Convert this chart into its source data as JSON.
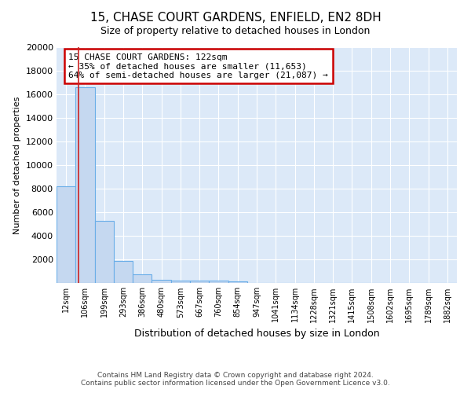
{
  "title": "15, CHASE COURT GARDENS, ENFIELD, EN2 8DH",
  "subtitle": "Size of property relative to detached houses in London",
  "xlabel": "Distribution of detached houses by size in London",
  "ylabel": "Number of detached properties",
  "bin_labels": [
    "12sqm",
    "106sqm",
    "199sqm",
    "293sqm",
    "386sqm",
    "480sqm",
    "573sqm",
    "667sqm",
    "760sqm",
    "854sqm",
    "947sqm",
    "1041sqm",
    "1134sqm",
    "1228sqm",
    "1321sqm",
    "1415sqm",
    "1508sqm",
    "1602sqm",
    "1695sqm",
    "1789sqm",
    "1882sqm"
  ],
  "bar_heights": [
    8200,
    16600,
    5300,
    1850,
    750,
    300,
    230,
    200,
    190,
    160,
    0,
    0,
    0,
    0,
    0,
    0,
    0,
    0,
    0,
    0,
    0
  ],
  "bar_color": "#c5d8f0",
  "bar_edge_color": "#6aaee8",
  "annotation_line1": "15 CHASE COURT GARDENS: 122sqm",
  "annotation_line2": "← 35% of detached houses are smaller (11,653)",
  "annotation_line3": "64% of semi-detached houses are larger (21,087) →",
  "annotation_box_color": "#ffffff",
  "annotation_box_edge": "#cc0000",
  "ylim": [
    0,
    20000
  ],
  "yticks": [
    0,
    2000,
    4000,
    6000,
    8000,
    10000,
    12000,
    14000,
    16000,
    18000,
    20000
  ],
  "red_line_color": "#cc2222",
  "footer_line1": "Contains HM Land Registry data © Crown copyright and database right 2024.",
  "footer_line2": "Contains public sector information licensed under the Open Government Licence v3.0.",
  "plot_bg_color": "#dce9f8",
  "title_fontsize": 11,
  "subtitle_fontsize": 9
}
